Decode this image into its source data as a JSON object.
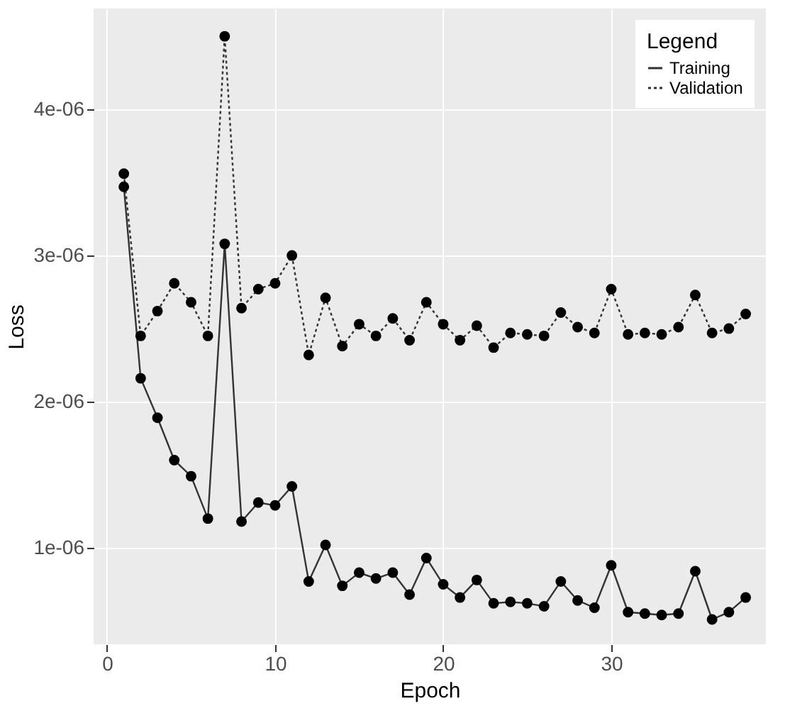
{
  "chart_data": {
    "type": "line",
    "xlabel": "Epoch",
    "ylabel": "Loss",
    "legend_title": "Legend",
    "x": [
      1,
      2,
      3,
      4,
      5,
      6,
      7,
      8,
      9,
      10,
      11,
      12,
      13,
      14,
      15,
      16,
      17,
      18,
      19,
      20,
      21,
      22,
      23,
      24,
      25,
      26,
      27,
      28,
      29,
      30,
      31,
      32,
      33,
      34,
      35,
      36,
      37,
      38
    ],
    "series": [
      {
        "name": "Training",
        "color": "#333333",
        "line_style": "solid",
        "values": [
          3.47e-06,
          2.16e-06,
          1.89e-06,
          1.6e-06,
          1.49e-06,
          1.2e-06,
          3.08e-06,
          1.18e-06,
          1.31e-06,
          1.29e-06,
          1.42e-06,
          7.7e-07,
          1.02e-06,
          7.4e-07,
          8.3e-07,
          7.9e-07,
          8.3e-07,
          6.8e-07,
          9.3e-07,
          7.5e-07,
          6.6e-07,
          7.8e-07,
          6.2e-07,
          6.3e-07,
          6.2e-07,
          6e-07,
          7.7e-07,
          6.4e-07,
          5.9e-07,
          8.8e-07,
          5.6e-07,
          5.5e-07,
          5.4e-07,
          5.5e-07,
          8.4e-07,
          5.1e-07,
          5.6e-07,
          6.6e-07
        ]
      },
      {
        "name": "Validation",
        "color": "#333333",
        "line_style": "dotted",
        "values": [
          3.56e-06,
          2.45e-06,
          2.62e-06,
          2.81e-06,
          2.68e-06,
          2.45e-06,
          4.5e-06,
          2.64e-06,
          2.77e-06,
          2.81e-06,
          3e-06,
          2.32e-06,
          2.71e-06,
          2.38e-06,
          2.53e-06,
          2.45e-06,
          2.57e-06,
          2.42e-06,
          2.68e-06,
          2.53e-06,
          2.42e-06,
          2.52e-06,
          2.37e-06,
          2.47e-06,
          2.46e-06,
          2.45e-06,
          2.61e-06,
          2.51e-06,
          2.47e-06,
          2.77e-06,
          2.46e-06,
          2.47e-06,
          2.46e-06,
          2.51e-06,
          2.73e-06,
          2.47e-06,
          2.5e-06,
          2.6e-06
        ]
      }
    ],
    "xlim": [
      -0.8,
      39.2
    ],
    "xticks": [
      0,
      10,
      20,
      30
    ],
    "ylim": [
      3.4e-07,
      4.69e-06
    ],
    "yticks": [
      {
        "value": 1e-06,
        "label": "1e-06"
      },
      {
        "value": 2e-06,
        "label": "2e-06"
      },
      {
        "value": 3e-06,
        "label": "3e-06"
      },
      {
        "value": 4e-06,
        "label": "4e-06"
      }
    ],
    "grid": true,
    "legend": "top right",
    "marker": "circle"
  }
}
